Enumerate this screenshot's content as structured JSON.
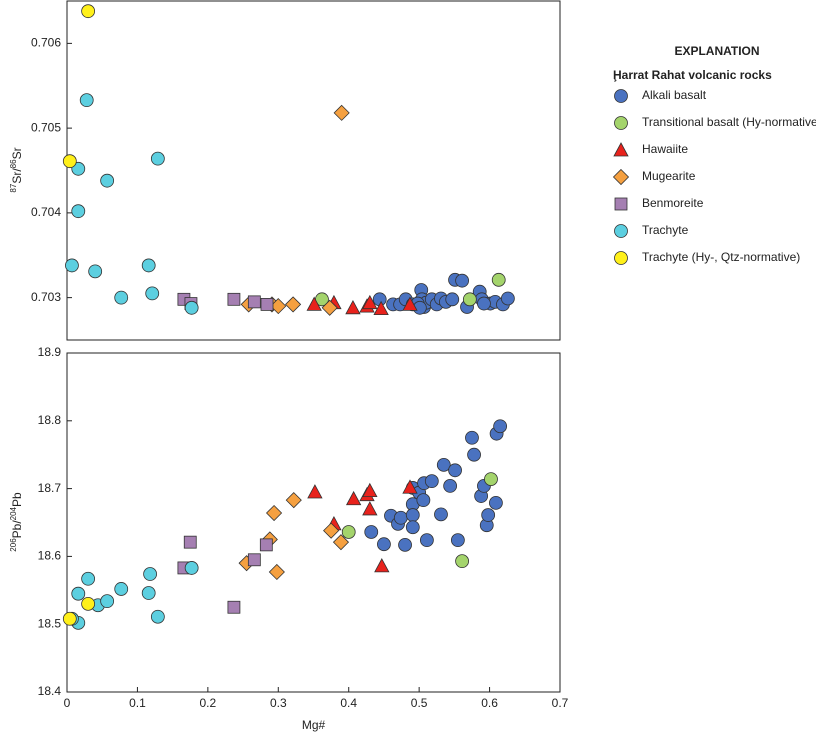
{
  "chart_data": [
    {
      "type": "scatter",
      "ylabel_parts": [
        "87",
        "Sr/",
        "86",
        "Sr"
      ],
      "xlim": [
        0,
        0.7
      ],
      "ylim": [
        0.7025,
        0.7065
      ],
      "yticks": [
        0.703,
        0.704,
        0.705,
        0.706
      ],
      "legend": {
        "title": "EXPLANATION",
        "subtitle": "Ḩarrat Rahat volcanic rocks",
        "position": "outside right"
      },
      "series": [
        {
          "name": "Alkali basalt",
          "marker": "circle",
          "color": "#4a72c0",
          "x": [
            0.444,
            0.463,
            0.473,
            0.481,
            0.491,
            0.503,
            0.504,
            0.507,
            0.51,
            0.518,
            0.525,
            0.531,
            0.538,
            0.547,
            0.551,
            0.561,
            0.568,
            0.586,
            0.589,
            0.601,
            0.608,
            0.619,
            0.626,
            0.592,
            0.498,
            0.501
          ],
          "y": [
            0.70298,
            0.70292,
            0.70292,
            0.70298,
            0.70292,
            0.70309,
            0.70298,
            0.70289,
            0.70294,
            0.70298,
            0.70292,
            0.70299,
            0.70295,
            0.70298,
            0.70321,
            0.7032,
            0.70289,
            0.70307,
            0.70298,
            0.70293,
            0.70295,
            0.70292,
            0.70299,
            0.70293,
            0.70293,
            0.70288
          ]
        },
        {
          "name": "Transitional basalt (Hy-normative)",
          "marker": "circle",
          "color": "#a4d46c",
          "x": [
            0.362,
            0.572,
            0.613
          ],
          "y": [
            0.70298,
            0.70298,
            0.70321
          ]
        },
        {
          "name": "Hawaiite",
          "marker": "triangle",
          "color": "#e8221c",
          "x": [
            0.351,
            0.379,
            0.406,
            0.426,
            0.43,
            0.446,
            0.487
          ],
          "y": [
            0.70292,
            0.70294,
            0.70288,
            0.7029,
            0.70294,
            0.70287,
            0.70292
          ]
        },
        {
          "name": "Mugearite",
          "marker": "diamond",
          "color": "#f5a040",
          "x": [
            0.258,
            0.291,
            0.321,
            0.373,
            0.3,
            0.39
          ],
          "y": [
            0.70292,
            0.70292,
            0.70292,
            0.70288,
            0.7029,
            0.70518
          ]
        },
        {
          "name": "Benmoreite",
          "marker": "square",
          "color": "#a57fb2",
          "x": [
            0.166,
            0.176,
            0.237,
            0.266,
            0.284
          ],
          "y": [
            0.70298,
            0.70293,
            0.70298,
            0.70295,
            0.70292
          ]
        },
        {
          "name": "Trachyte",
          "marker": "circle",
          "color": "#5ccfe0",
          "x": [
            0.028,
            0.016,
            0.057,
            0.129,
            0.016,
            0.007,
            0.04,
            0.116,
            0.077,
            0.121,
            0.177
          ],
          "y": [
            0.70533,
            0.70452,
            0.70438,
            0.70464,
            0.70402,
            0.70338,
            0.70331,
            0.70338,
            0.703,
            0.70305,
            0.70288
          ]
        },
        {
          "name": "Trachyte (Hy-, Qtz-normative)",
          "marker": "circle",
          "color": "#fff01a",
          "x": [
            0.03,
            0.004
          ],
          "y": [
            0.70638,
            0.70461
          ]
        }
      ]
    },
    {
      "type": "scatter",
      "xlabel": "Mg#",
      "ylabel_parts": [
        "206",
        "Pb/",
        "204",
        "Pb"
      ],
      "xlim": [
        0,
        0.7
      ],
      "ylim": [
        18.4,
        18.9
      ],
      "xticks": [
        0,
        0.1,
        0.2,
        0.3,
        0.4,
        0.5,
        0.6,
        0.7
      ],
      "yticks": [
        18.4,
        18.5,
        18.6,
        18.7,
        18.8,
        18.9
      ],
      "series": [
        {
          "marker": "circle",
          "color": "#4a72c0",
          "x": [
            0.432,
            0.45,
            0.46,
            0.47,
            0.474,
            0.48,
            0.491,
            0.491,
            0.491,
            0.491,
            0.5,
            0.506,
            0.507,
            0.511,
            0.518,
            0.531,
            0.535,
            0.544,
            0.551,
            0.555,
            0.575,
            0.578,
            0.588,
            0.592,
            0.596,
            0.598,
            0.609,
            0.61,
            0.615
          ],
          "y": [
            18.636,
            18.618,
            18.66,
            18.648,
            18.657,
            18.617,
            18.701,
            18.677,
            18.661,
            18.643,
            18.694,
            18.683,
            18.708,
            18.624,
            18.711,
            18.662,
            18.735,
            18.704,
            18.727,
            18.624,
            18.775,
            18.75,
            18.689,
            18.704,
            18.646,
            18.661,
            18.679,
            18.781,
            18.792
          ]
        },
        {
          "marker": "circle",
          "color": "#a4d46c",
          "x": [
            0.4,
            0.561,
            0.602
          ],
          "y": [
            18.636,
            18.593,
            18.714
          ]
        },
        {
          "marker": "triangle",
          "color": "#e8221c",
          "x": [
            0.352,
            0.407,
            0.426,
            0.43,
            0.379,
            0.447,
            0.487,
            0.43
          ],
          "y": [
            18.695,
            18.685,
            18.691,
            18.67,
            18.648,
            18.586,
            18.702,
            18.697
          ]
        },
        {
          "marker": "diamond",
          "color": "#f5a040",
          "x": [
            0.255,
            0.288,
            0.294,
            0.298,
            0.322,
            0.389,
            0.375
          ],
          "y": [
            18.59,
            18.625,
            18.664,
            18.577,
            18.683,
            18.621,
            18.638
          ]
        },
        {
          "marker": "square",
          "color": "#a57fb2",
          "x": [
            0.175,
            0.166,
            0.237,
            0.266,
            0.283
          ],
          "y": [
            18.621,
            18.583,
            18.525,
            18.595,
            18.617
          ]
        },
        {
          "marker": "circle",
          "color": "#5ccfe0",
          "x": [
            0.016,
            0.03,
            0.044,
            0.057,
            0.077,
            0.118,
            0.116,
            0.129,
            0.177,
            0.016,
            0.007
          ],
          "y": [
            18.545,
            18.567,
            18.528,
            18.534,
            18.552,
            18.574,
            18.546,
            18.511,
            18.583,
            18.502,
            18.508
          ]
        },
        {
          "marker": "circle",
          "color": "#fff01a",
          "x": [
            0.004,
            0.03
          ],
          "y": [
            18.508,
            18.53
          ]
        }
      ]
    }
  ]
}
